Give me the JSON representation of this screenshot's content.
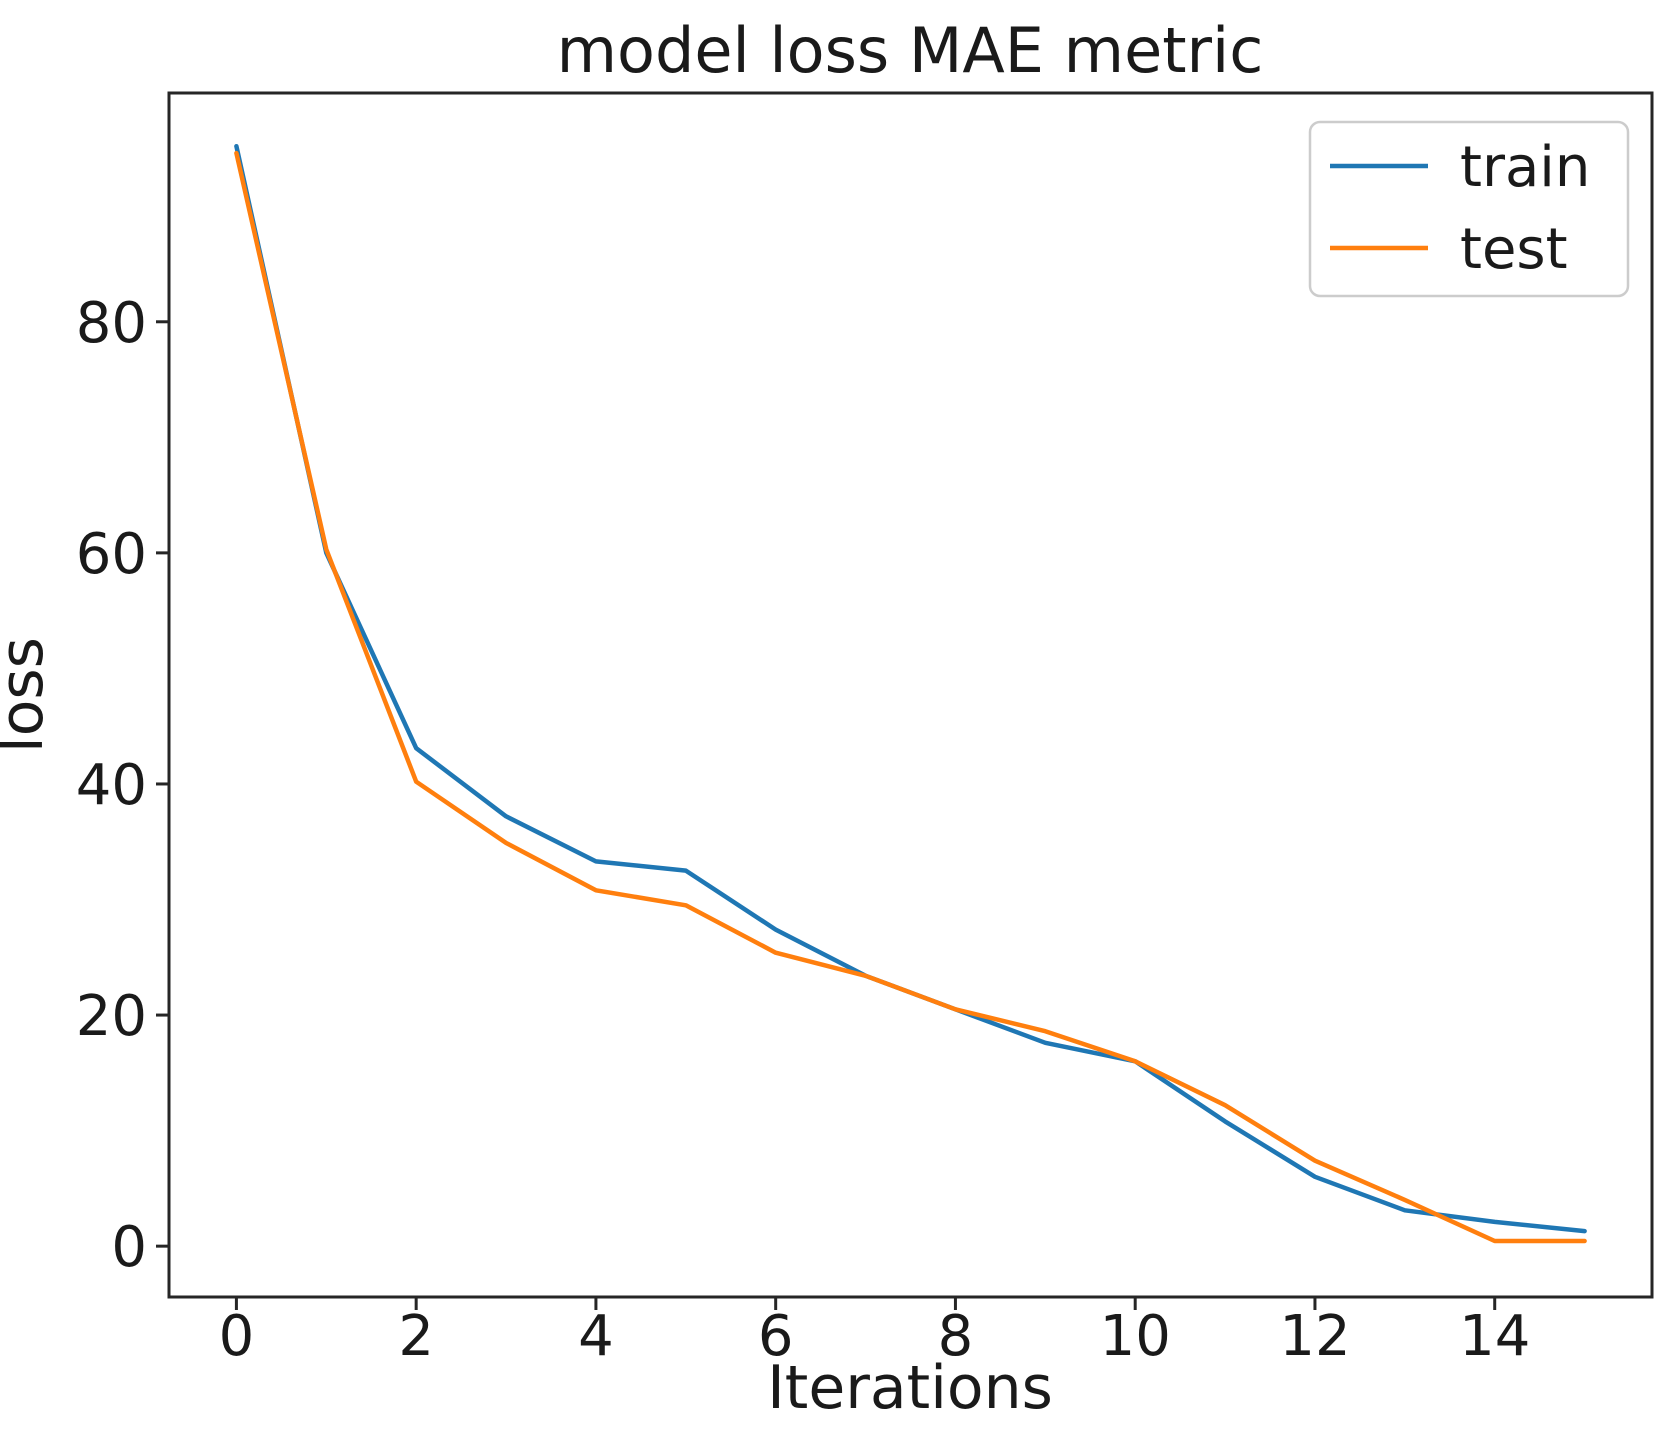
{
  "page": {
    "background_color": "#ffffff"
  },
  "chart_data": {
    "type": "line",
    "title": "model loss MAE metric",
    "xlabel": "Iterations",
    "ylabel": "loss",
    "x": [
      0,
      1,
      2,
      3,
      4,
      5,
      6,
      7,
      8,
      9,
      10,
      11,
      12,
      13,
      14,
      15
    ],
    "series": [
      {
        "name": "train",
        "color": "#1f77b4",
        "values": [
          95.2,
          60.0,
          43.1,
          37.2,
          33.3,
          32.5,
          27.4,
          23.4,
          20.5,
          17.6,
          16.0,
          10.8,
          6.0,
          3.1,
          2.1,
          1.3
        ]
      },
      {
        "name": "test",
        "color": "#ff7f0e",
        "values": [
          94.6,
          60.3,
          40.2,
          34.9,
          30.8,
          29.5,
          25.4,
          23.4,
          20.5,
          18.6,
          16.0,
          12.2,
          7.4,
          4.0,
          0.45,
          0.45
        ]
      }
    ],
    "xticks": [
      0,
      2,
      4,
      6,
      8,
      10,
      12,
      14
    ],
    "yticks": [
      0,
      20,
      40,
      60,
      80
    ],
    "xlim": [
      -0.75,
      15.75
    ],
    "ylim": [
      -4.4,
      99.8
    ],
    "grid": false,
    "legend_position": "upper right",
    "axis_color": "#262626",
    "line_width": 4.5
  }
}
